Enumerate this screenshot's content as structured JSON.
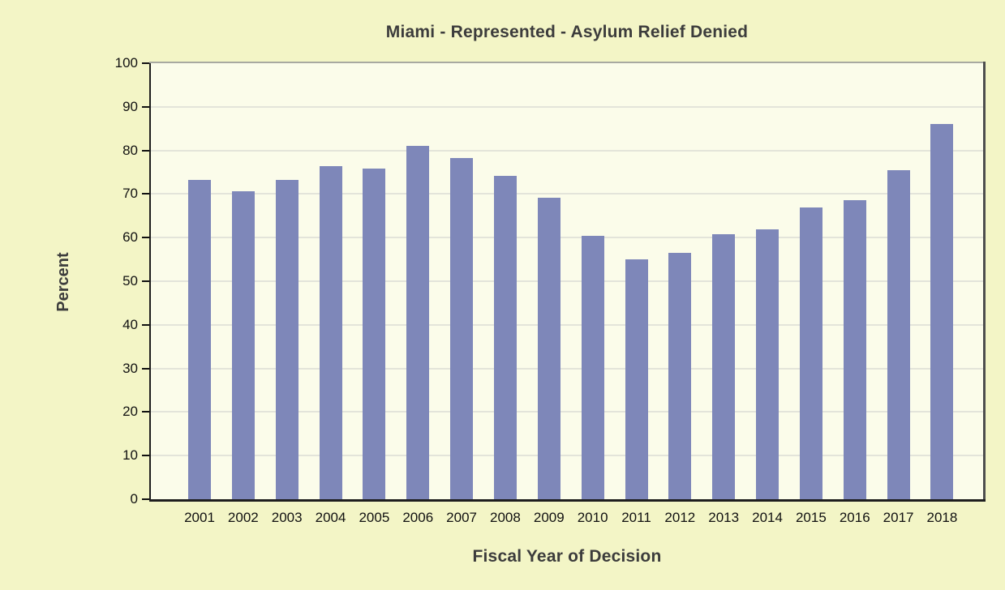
{
  "chart_data": {
    "type": "bar",
    "title": "Miami - Represented - Asylum Relief Denied",
    "xlabel": "Fiscal Year of Decision",
    "ylabel": "Percent",
    "categories": [
      "2001",
      "2002",
      "2003",
      "2004",
      "2005",
      "2006",
      "2007",
      "2008",
      "2009",
      "2010",
      "2011",
      "2012",
      "2013",
      "2014",
      "2015",
      "2016",
      "2017",
      "2018"
    ],
    "values": [
      73.3,
      70.6,
      73.2,
      76.4,
      75.8,
      81.1,
      78.3,
      74.1,
      69.1,
      60.5,
      55.0,
      56.5,
      60.7,
      61.9,
      66.9,
      68.6,
      75.5,
      86.1
    ],
    "ylim": [
      0,
      100
    ],
    "ytick_step": 10,
    "ytick_labels": [
      "0",
      "10",
      "20",
      "30",
      "40",
      "50",
      "60",
      "70",
      "80",
      "90",
      "100"
    ],
    "grid": true,
    "legend": "none",
    "colors": {
      "page_background": "#f3f5c6",
      "plot_background": "#fbfcea",
      "bar_fill": "#7e87b9",
      "gridline": "#e3e4da",
      "axis_dark": "#1e1e1e",
      "frame_top": "#a8a9a1",
      "frame_right": "#4e4e4e",
      "tick_mark": "#111111",
      "title_text": "#3c3c3c"
    }
  }
}
